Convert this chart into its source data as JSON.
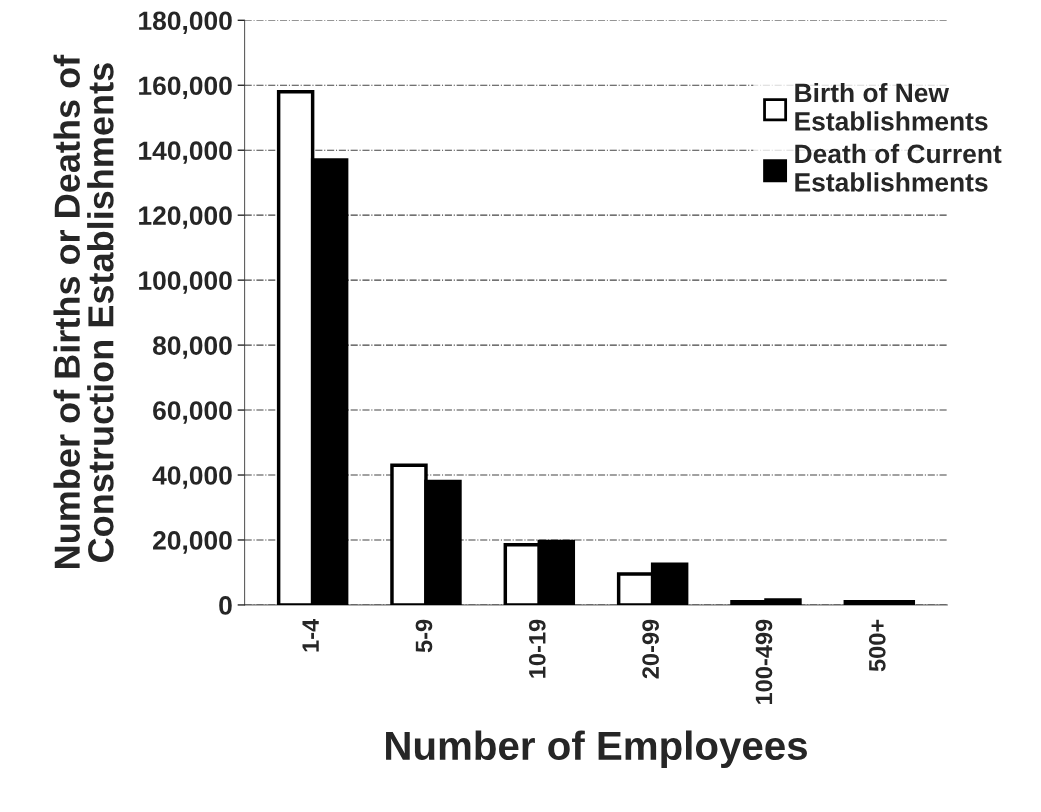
{
  "chart_data": {
    "type": "bar",
    "xlabel": "Number of Employees",
    "ylabel": "Number of Births or Deaths of\nConstruction Establishments",
    "categories": [
      "1-4",
      "5-9",
      "10-19",
      "20-99",
      "100-499",
      "500+"
    ],
    "series": [
      {
        "name": "Birth of New\nEstablishments",
        "color": "#ffffff",
        "values": [
          158000,
          43000,
          18500,
          9500,
          1000,
          1000
        ]
      },
      {
        "name": "Death of Current\nEstablishments",
        "color": "#000000",
        "values": [
          137000,
          38000,
          19500,
          12500,
          1500,
          1000
        ]
      }
    ],
    "ylim": [
      0,
      180000
    ],
    "yticks": [
      {
        "value": 0,
        "label": "0"
      },
      {
        "value": 20000,
        "label": "20,000"
      },
      {
        "value": 40000,
        "label": "40,000"
      },
      {
        "value": 60000,
        "label": "60,000"
      },
      {
        "value": 80000,
        "label": "80,000"
      },
      {
        "value": 100000,
        "label": "100,000"
      },
      {
        "value": 120000,
        "label": "120,000"
      },
      {
        "value": 140000,
        "label": "140,000"
      },
      {
        "value": 160000,
        "label": "160,000"
      },
      {
        "value": 180000,
        "label": "180,000"
      }
    ],
    "grid": "y",
    "legend": "top right"
  }
}
